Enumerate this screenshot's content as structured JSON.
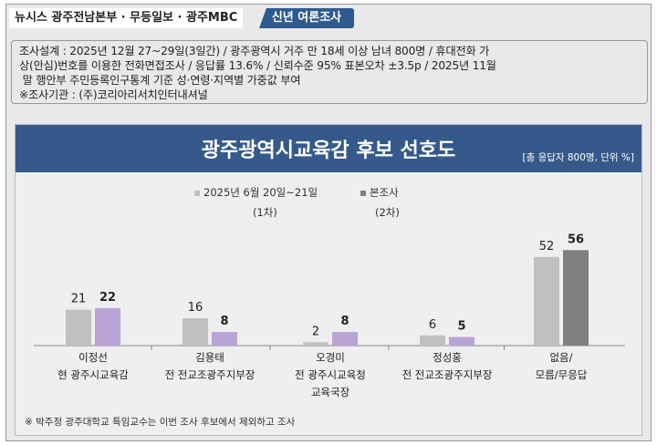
{
  "header": {
    "source": "뉴시스  광주전남본부 · 무등일보 · 광주MBC",
    "tag": "신년  여론조사"
  },
  "info": {
    "lines": [
      "조사설계 : 2025년 12월 27~29일(3일간) / 광주광역시 거주 만 18세 이상 남녀 800명 / 휴대전화 가",
      "상(안심)번호를 이용한 전화면접조사 / 응답률 13.6% / 신뢰수준 95% 표본오차 ±3.5p / 2025년 11월",
      " 말 행안부 주민등록인구통계 기준 성·연령·지역별 가중값 부여",
      "※조사기관 : (주)코리아리서치인터내셔널"
    ]
  },
  "chart_data": {
    "type": "bar",
    "title": "광주광역시교육감 후보 선호도",
    "unit_note": "[총 응답자 800명, 단위 %]",
    "categories": [
      [
        "이정선",
        "현 광주시교육감"
      ],
      [
        "김용태",
        "전 전교조광주지부장"
      ],
      [
        "오경미",
        "전 광주시교육청",
        "교육국장"
      ],
      [
        "정성홍",
        "전 전교조광주지부장"
      ],
      [
        "없음/",
        "모름/무응답"
      ]
    ],
    "series": [
      {
        "name": "2025년 6월 20일~21일",
        "name2": "(1차)",
        "values": [
          21,
          16,
          2,
          6,
          52
        ],
        "color": "#c0c0c0"
      },
      {
        "name": "본조사",
        "name2": "(2차)",
        "values": [
          22,
          8,
          8,
          5,
          56
        ],
        "color": "#b9a3d6",
        "last_color": "#808080",
        "legend_color": "#808080"
      }
    ],
    "legend": "top-center"
  },
  "footnote": "※ 박주정 광주대학교 특임교수는 이번 조사 후보에서 제외하고 조사"
}
